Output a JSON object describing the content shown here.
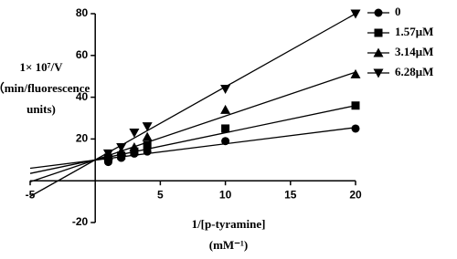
{
  "chart_data": {
    "type": "scatter",
    "x_label": "1/[p-tyramine]",
    "x_unit_label": "(mM⁻¹)",
    "y_label": [
      "1× 10⁷/V",
      "（min/fluorescence",
      "units)"
    ],
    "xlim": [
      -5,
      20
    ],
    "ylim": [
      -20,
      80
    ],
    "xticks": [
      -5,
      5,
      10,
      15,
      20
    ],
    "yticks": [
      -20,
      20,
      40,
      60,
      80
    ],
    "legend": "top-right",
    "series": [
      {
        "name": "0",
        "color": "#000000",
        "marker": "circle",
        "x": [
          1,
          2,
          3,
          4,
          10,
          20
        ],
        "values": [
          9,
          11,
          13,
          14,
          19,
          25
        ],
        "trend_line": {
          "x": [
            -5,
            20
          ],
          "values": [
            6,
            25.5
          ]
        }
      },
      {
        "name": "1.57μM",
        "color": "#000000",
        "marker": "square",
        "x": [
          1,
          2,
          3,
          4,
          10,
          20
        ],
        "values": [
          11,
          12,
          14,
          17,
          25,
          36
        ],
        "trend_line": {
          "x": [
            -5,
            20
          ],
          "values": [
            3.5,
            36
          ]
        }
      },
      {
        "name": "3.14μM",
        "color": "#000000",
        "marker": "triangle-up",
        "x": [
          1,
          2,
          3,
          4,
          10,
          20
        ],
        "values": [
          12,
          14,
          16,
          21,
          34,
          51
        ],
        "trend_line": {
          "x": [
            -5,
            20
          ],
          "values": [
            -0.5,
            52
          ]
        }
      },
      {
        "name": "6.28μM",
        "color": "#000000",
        "marker": "triangle-down",
        "x": [
          1,
          2,
          3,
          4,
          10,
          20
        ],
        "values": [
          13,
          16,
          23,
          26,
          44,
          80
        ],
        "trend_line": {
          "x": [
            -5,
            20
          ],
          "values": [
            -7.5,
            80
          ]
        }
      }
    ]
  }
}
